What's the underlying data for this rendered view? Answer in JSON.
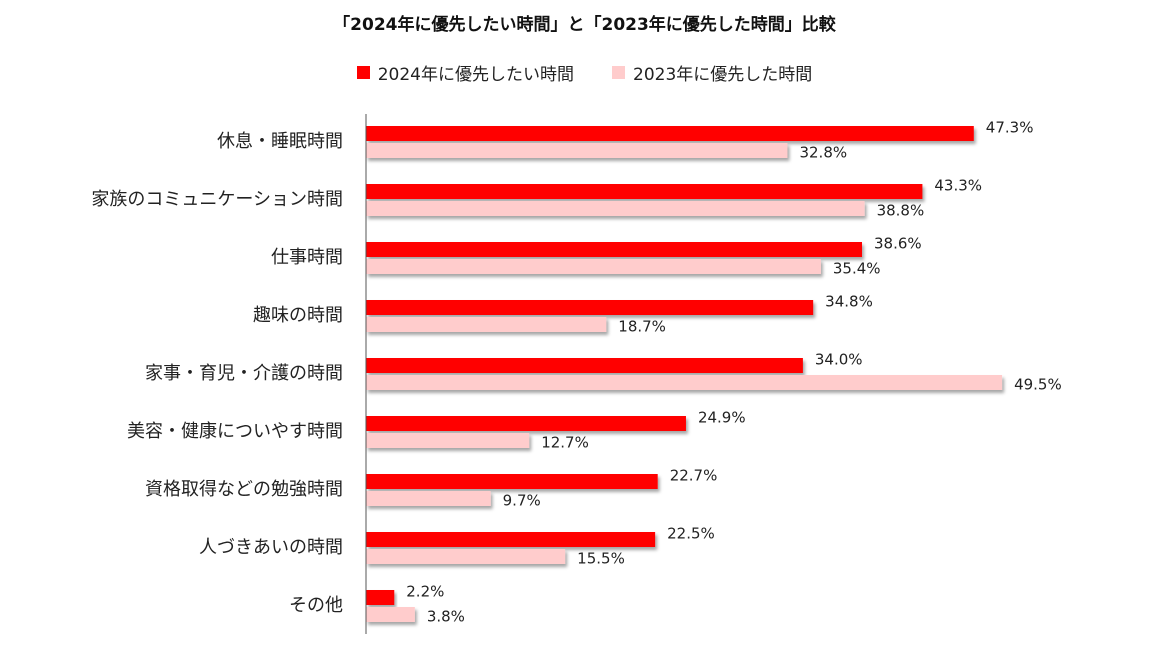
{
  "chart_data": {
    "type": "bar",
    "orientation": "horizontal",
    "title": "「2024年に優先したい時間」と「2023年に優先した時間」比較",
    "xlim": [
      0,
      50
    ],
    "grid": false,
    "legend_position": "top-center",
    "categories": [
      "休息・睡眠時間",
      "家族のコミュニケーション時間",
      "仕事時間",
      "趣味の時間",
      "家事・育児・介護の時間",
      "美容・健康についやす時間",
      "資格取得などの勉強時間",
      "人づきあいの時間",
      "その他"
    ],
    "series": [
      {
        "name": "2024年に優先したい時間",
        "color": "#ff0000",
        "values": [
          47.3,
          43.3,
          38.6,
          34.8,
          34.0,
          24.9,
          22.7,
          22.5,
          2.2
        ],
        "labels": [
          "47.3%",
          "43.3%",
          "38.6%",
          "34.8%",
          "34.0%",
          "24.9%",
          "22.7%",
          "22.5%",
          "2.2%"
        ]
      },
      {
        "name": "2023年に優先した時間",
        "color": "#ffcccc",
        "values": [
          32.8,
          38.8,
          35.4,
          18.7,
          49.5,
          12.7,
          9.7,
          15.5,
          3.8
        ],
        "labels": [
          "32.8%",
          "38.8%",
          "35.4%",
          "18.7%",
          "49.5%",
          "12.7%",
          "9.7%",
          "15.5%",
          "3.8%"
        ]
      }
    ]
  }
}
